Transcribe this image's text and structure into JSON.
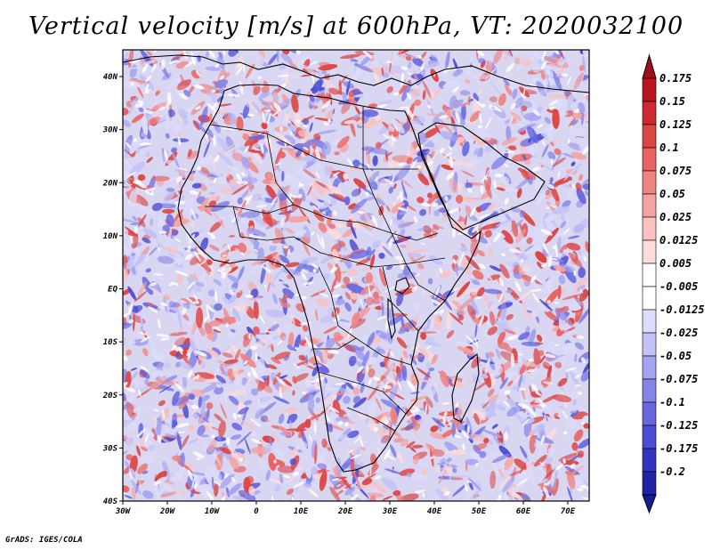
{
  "title": "Vertical velocity [m/s] at 600hPa, VT: 2020032100",
  "footer": "GrADS: IGES/COLA",
  "map": {
    "region": "Africa",
    "lat_labels": [
      "40N",
      "30N",
      "20N",
      "10N",
      "EQ",
      "10S",
      "20S",
      "30S",
      "40S"
    ],
    "lon_labels": [
      "30W",
      "20W",
      "10W",
      "0",
      "10E",
      "20E",
      "30E",
      "40E",
      "50E",
      "60E",
      "70E"
    ]
  },
  "colorbar": {
    "levels": [
      {
        "label": "0.175",
        "color": "#b8151e"
      },
      {
        "label": "0.15",
        "color": "#cc2a2f"
      },
      {
        "label": "0.125",
        "color": "#dc4643"
      },
      {
        "label": "0.1",
        "color": "#e86462"
      },
      {
        "label": "0.075",
        "color": "#f08482"
      },
      {
        "label": "0.05",
        "color": "#f5a3a1"
      },
      {
        "label": "0.025",
        "color": "#f9c2c1"
      },
      {
        "label": "0.0125",
        "color": "#fcdcdb"
      },
      {
        "label": "0.005",
        "color": "#ffffff"
      },
      {
        "label": "-0.005",
        "color": "#ffffff"
      },
      {
        "label": "-0.0125",
        "color": "#dcdcfb"
      },
      {
        "label": "-0.025",
        "color": "#c2c2f7"
      },
      {
        "label": "-0.05",
        "color": "#a4a4f0"
      },
      {
        "label": "-0.075",
        "color": "#8585e8"
      },
      {
        "label": "-0.1",
        "color": "#6767e0"
      },
      {
        "label": "-0.125",
        "color": "#4c4cd4"
      },
      {
        "label": "-0.175",
        "color": "#3333c2"
      },
      {
        "label": "-0.2",
        "color": "#2222a6"
      }
    ],
    "top_arrow_color": "#a01018",
    "bottom_arrow_color": "#1a1a96"
  },
  "colors": {
    "ocean_base": "#d7d5f3",
    "upward": "#e06060",
    "downward": "#6a6ae0",
    "border": "#000000"
  }
}
